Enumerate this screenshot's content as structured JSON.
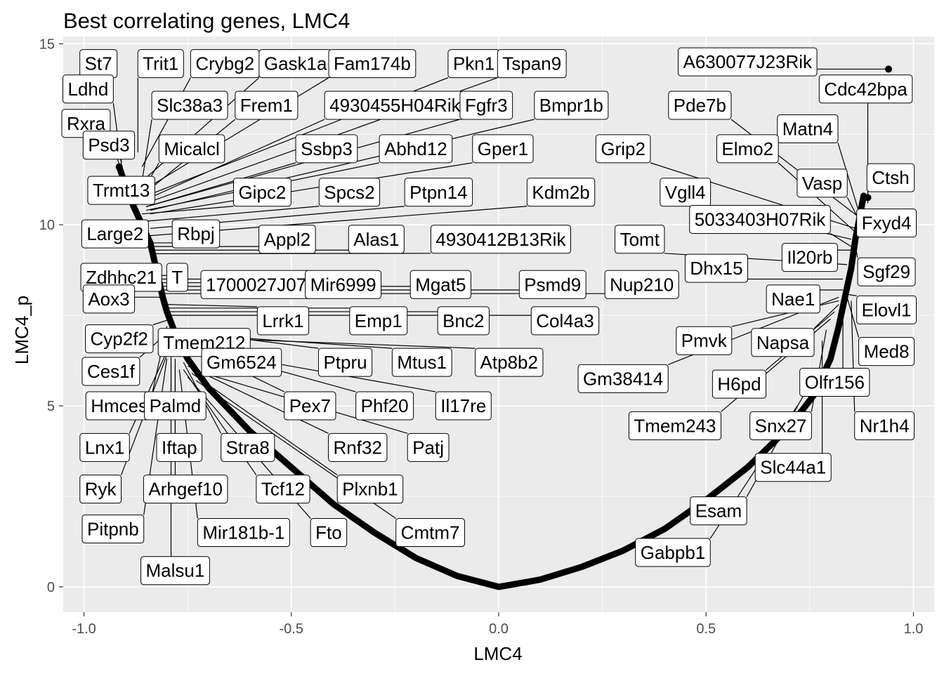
{
  "chart_data": {
    "type": "scatter",
    "title": "Best correlating genes, LMC4",
    "xlabel": "LMC4",
    "ylabel": "LMC4_p",
    "xlim": [
      -1.05,
      1.05
    ],
    "ylim": [
      -0.7,
      15.2
    ],
    "x_ticks": [
      -1.0,
      -0.5,
      0.0,
      0.5,
      1.0
    ],
    "x_tick_labels": [
      "-1.0",
      "-0.5",
      "0.0",
      "0.5",
      "1.0"
    ],
    "y_ticks": [
      0,
      5,
      10,
      15
    ],
    "y_tick_labels": [
      "0",
      "5",
      "10",
      "15"
    ],
    "grid": true,
    "background": "#ebebeb",
    "curve": {
      "description": "dense background points forming a U-shaped relationship",
      "points": [
        [
          -0.915,
          11.6
        ],
        [
          -0.9,
          11.1
        ],
        [
          -0.88,
          10.5
        ],
        [
          -0.86,
          10.0
        ],
        [
          -0.84,
          9.5
        ],
        [
          -0.83,
          9.0
        ],
        [
          -0.82,
          8.5
        ],
        [
          -0.81,
          8.0
        ],
        [
          -0.8,
          7.6
        ],
        [
          -0.78,
          7.0
        ],
        [
          -0.75,
          6.3
        ],
        [
          -0.7,
          5.5
        ],
        [
          -0.6,
          4.3
        ],
        [
          -0.5,
          3.3
        ],
        [
          -0.4,
          2.3
        ],
        [
          -0.3,
          1.5
        ],
        [
          -0.2,
          0.8
        ],
        [
          -0.1,
          0.3
        ],
        [
          0.0,
          0.0
        ],
        [
          0.1,
          0.2
        ],
        [
          0.2,
          0.55
        ],
        [
          0.3,
          1.0
        ],
        [
          0.4,
          1.6
        ],
        [
          0.5,
          2.4
        ],
        [
          0.6,
          3.3
        ],
        [
          0.7,
          4.4
        ],
        [
          0.76,
          5.3
        ],
        [
          0.8,
          6.3
        ],
        [
          0.82,
          7.2
        ],
        [
          0.835,
          8.0
        ],
        [
          0.85,
          8.8
        ],
        [
          0.86,
          9.6
        ],
        [
          0.87,
          10.2
        ],
        [
          0.88,
          10.8
        ]
      ]
    },
    "highlighted_points": [
      {
        "x": 0.94,
        "y": 14.3
      },
      {
        "x": 0.89,
        "y": 10.75
      },
      {
        "x": -0.915,
        "y": 11.6
      }
    ],
    "labels": [
      {
        "text": "St7",
        "x": -0.93,
        "y": 14.5,
        "lx": -0.965,
        "ly": 14.45
      },
      {
        "text": "Trit1",
        "x": -0.87,
        "y": 12.0,
        "lx": -0.815,
        "ly": 14.45
      },
      {
        "text": "Crybg2",
        "x": -0.86,
        "y": 11.6,
        "lx": -0.66,
        "ly": 14.45
      },
      {
        "text": "Gask1a",
        "x": -0.85,
        "y": 11.3,
        "lx": -0.49,
        "ly": 14.45
      },
      {
        "text": "Fam174b",
        "x": -0.85,
        "y": 11.0,
        "lx": -0.305,
        "ly": 14.45
      },
      {
        "text": "Pkn1",
        "x": -0.85,
        "y": 10.8,
        "lx": -0.06,
        "ly": 14.45
      },
      {
        "text": "Tspan9",
        "x": -0.85,
        "y": 10.6,
        "lx": 0.08,
        "ly": 14.45
      },
      {
        "text": "Ldhd",
        "x": -0.91,
        "y": 11.7,
        "lx": -0.99,
        "ly": 13.75
      },
      {
        "text": "Rxra",
        "x": -0.91,
        "y": 11.5,
        "lx": -0.995,
        "ly": 12.8
      },
      {
        "text": "Slc38a3",
        "x": -0.86,
        "y": 11.2,
        "lx": -0.745,
        "ly": 13.3
      },
      {
        "text": "Frem1",
        "x": -0.85,
        "y": 10.9,
        "lx": -0.56,
        "ly": 13.3
      },
      {
        "text": "4930455H04Rik",
        "x": -0.85,
        "y": 10.7,
        "lx": -0.25,
        "ly": 13.3
      },
      {
        "text": "Fgfr3",
        "x": -0.85,
        "y": 10.5,
        "lx": -0.03,
        "ly": 13.3
      },
      {
        "text": "Bmpr1b",
        "x": -0.84,
        "y": 10.4,
        "lx": 0.175,
        "ly": 13.3
      },
      {
        "text": "Psd3",
        "x": -0.91,
        "y": 11.6,
        "lx": -0.94,
        "ly": 12.2
      },
      {
        "text": "Micalcl",
        "x": -0.86,
        "y": 10.9,
        "lx": -0.74,
        "ly": 12.1
      },
      {
        "text": "Ssbp3",
        "x": -0.85,
        "y": 10.5,
        "lx": -0.415,
        "ly": 12.1
      },
      {
        "text": "Abhd12",
        "x": -0.85,
        "y": 10.4,
        "lx": -0.2,
        "ly": 12.1
      },
      {
        "text": "Gper1",
        "x": -0.84,
        "y": 10.3,
        "lx": 0.01,
        "ly": 12.1
      },
      {
        "text": "Trmt13",
        "x": -0.88,
        "y": 10.5,
        "lx": -0.91,
        "ly": 10.95
      },
      {
        "text": "Gipc2",
        "x": -0.86,
        "y": 10.3,
        "lx": -0.57,
        "ly": 10.9
      },
      {
        "text": "Spcs2",
        "x": -0.85,
        "y": 10.1,
        "lx": -0.36,
        "ly": 10.9
      },
      {
        "text": "Ptpn14",
        "x": -0.84,
        "y": 9.9,
        "lx": -0.145,
        "ly": 10.9
      },
      {
        "text": "Kdm2b",
        "x": -0.84,
        "y": 9.7,
        "lx": 0.15,
        "ly": 10.9
      },
      {
        "text": "Large2",
        "x": -0.85,
        "y": 9.6,
        "lx": -0.925,
        "ly": 9.75
      },
      {
        "text": "Rbpj",
        "x": -0.84,
        "y": 9.5,
        "lx": -0.73,
        "ly": 9.75
      },
      {
        "text": "Appl2",
        "x": -0.84,
        "y": 9.4,
        "lx": -0.51,
        "ly": 9.6
      },
      {
        "text": "Alas1",
        "x": -0.83,
        "y": 9.3,
        "lx": -0.295,
        "ly": 9.6
      },
      {
        "text": "4930412B13Rik",
        "x": -0.83,
        "y": 9.2,
        "lx": 0.005,
        "ly": 9.6
      },
      {
        "text": "Zdhhc21",
        "x": -0.83,
        "y": 8.7,
        "lx": -0.91,
        "ly": 8.55
      },
      {
        "text": "T",
        "x": -0.82,
        "y": 8.6,
        "lx": -0.775,
        "ly": 8.55
      },
      {
        "text": "1700027J07",
        "x": -0.82,
        "y": 8.5,
        "lx": -0.585,
        "ly": 8.35
      },
      {
        "text": "Mir6999",
        "x": -0.82,
        "y": 8.4,
        "lx": -0.375,
        "ly": 8.35
      },
      {
        "text": "Mgat5",
        "x": -0.82,
        "y": 8.3,
        "lx": -0.14,
        "ly": 8.35
      },
      {
        "text": "Psmd9",
        "x": -0.82,
        "y": 8.2,
        "lx": 0.13,
        "ly": 8.35
      },
      {
        "text": "Nup210",
        "x": -0.82,
        "y": 8.1,
        "lx": 0.345,
        "ly": 8.35
      },
      {
        "text": "Aox3",
        "x": -0.81,
        "y": 8.0,
        "lx": -0.94,
        "ly": 7.95
      },
      {
        "text": "Lrrk1",
        "x": -0.8,
        "y": 7.8,
        "lx": -0.52,
        "ly": 7.35
      },
      {
        "text": "Emp1",
        "x": -0.8,
        "y": 7.7,
        "lx": -0.29,
        "ly": 7.35
      },
      {
        "text": "Bnc2",
        "x": -0.8,
        "y": 7.6,
        "lx": -0.085,
        "ly": 7.35
      },
      {
        "text": "Col4a3",
        "x": -0.8,
        "y": 7.5,
        "lx": 0.16,
        "ly": 7.35
      },
      {
        "text": "Cyp2f2",
        "x": -0.79,
        "y": 7.4,
        "lx": -0.915,
        "ly": 6.85
      },
      {
        "text": "Tmem212",
        "x": -0.79,
        "y": 7.3,
        "lx": -0.71,
        "ly": 6.75
      },
      {
        "text": "Gm6524",
        "x": -0.79,
        "y": 7.2,
        "lx": -0.62,
        "ly": 6.2
      },
      {
        "text": "Ptpru",
        "x": -0.79,
        "y": 7.1,
        "lx": -0.37,
        "ly": 6.2
      },
      {
        "text": "Mtus1",
        "x": -0.78,
        "y": 7.0,
        "lx": -0.185,
        "ly": 6.2
      },
      {
        "text": "Atp8b2",
        "x": -0.78,
        "y": 6.9,
        "lx": 0.025,
        "ly": 6.2
      },
      {
        "text": "Ces1f",
        "x": -0.8,
        "y": 7.0,
        "lx": -0.935,
        "ly": 5.95
      },
      {
        "text": "Gm38414",
        "x": 0.82,
        "y": 8.0,
        "lx": 0.3,
        "ly": 5.75
      },
      {
        "text": "Hmces",
        "x": -0.8,
        "y": 7.2,
        "lx": -0.915,
        "ly": 5.0
      },
      {
        "text": "Palmd",
        "x": -0.79,
        "y": 7.0,
        "lx": -0.78,
        "ly": 5.0
      },
      {
        "text": "Pex7",
        "x": -0.77,
        "y": 6.8,
        "lx": -0.455,
        "ly": 5.0
      },
      {
        "text": "Phf20",
        "x": -0.76,
        "y": 6.7,
        "lx": -0.275,
        "ly": 5.0
      },
      {
        "text": "Il17re",
        "x": -0.75,
        "y": 6.6,
        "lx": -0.085,
        "ly": 5.0
      },
      {
        "text": "Lnx1",
        "x": -0.8,
        "y": 6.5,
        "lx": -0.95,
        "ly": 3.85
      },
      {
        "text": "Iftap",
        "x": -0.78,
        "y": 6.3,
        "lx": -0.77,
        "ly": 3.85
      },
      {
        "text": "Stra8",
        "x": -0.76,
        "y": 6.2,
        "lx": -0.605,
        "ly": 3.85
      },
      {
        "text": "Rnf32",
        "x": -0.75,
        "y": 6.1,
        "lx": -0.34,
        "ly": 3.85
      },
      {
        "text": "Patj",
        "x": -0.74,
        "y": 6.0,
        "lx": -0.17,
        "ly": 3.85
      },
      {
        "text": "Ryk",
        "x": -0.8,
        "y": 6.4,
        "lx": -0.96,
        "ly": 2.7
      },
      {
        "text": "Arhgef10",
        "x": -0.78,
        "y": 6.1,
        "lx": -0.755,
        "ly": 2.7
      },
      {
        "text": "Tcf12",
        "x": -0.76,
        "y": 6.0,
        "lx": -0.52,
        "ly": 2.7
      },
      {
        "text": "Plxnb1",
        "x": -0.74,
        "y": 5.9,
        "lx": -0.31,
        "ly": 2.7
      },
      {
        "text": "Pitpnb",
        "x": -0.8,
        "y": 6.3,
        "lx": -0.93,
        "ly": 1.6
      },
      {
        "text": "Mir181b-1",
        "x": -0.77,
        "y": 6.0,
        "lx": -0.615,
        "ly": 1.5
      },
      {
        "text": "Fto",
        "x": -0.75,
        "y": 5.8,
        "lx": -0.41,
        "ly": 1.5
      },
      {
        "text": "Cmtm7",
        "x": -0.73,
        "y": 5.7,
        "lx": -0.165,
        "ly": 1.5
      },
      {
        "text": "Malsu1",
        "x": -0.79,
        "y": 6.2,
        "lx": -0.78,
        "ly": 0.45
      },
      {
        "text": "A630077J23Rik",
        "x": 0.94,
        "y": 14.3,
        "lx": 0.6,
        "ly": 14.5
      },
      {
        "text": "Cdc42bpa",
        "x": 0.89,
        "y": 10.75,
        "lx": 0.885,
        "ly": 13.75
      },
      {
        "text": "Pde7b",
        "x": 0.87,
        "y": 10.2,
        "lx": 0.485,
        "ly": 13.3
      },
      {
        "text": "Matn4",
        "x": 0.87,
        "y": 10.3,
        "lx": 0.745,
        "ly": 12.65
      },
      {
        "text": "Grip2",
        "x": 0.86,
        "y": 9.9,
        "lx": 0.3,
        "ly": 12.1
      },
      {
        "text": "Elmo2",
        "x": 0.86,
        "y": 9.8,
        "lx": 0.6,
        "ly": 12.1
      },
      {
        "text": "Ctsh",
        "x": 0.89,
        "y": 10.6,
        "lx": 0.945,
        "ly": 11.3
      },
      {
        "text": "Vasp",
        "x": 0.87,
        "y": 10.1,
        "lx": 0.78,
        "ly": 11.15
      },
      {
        "text": "Vgll4",
        "x": 0.85,
        "y": 9.6,
        "lx": 0.45,
        "ly": 10.9
      },
      {
        "text": "5033403H07Rik",
        "x": 0.85,
        "y": 9.4,
        "lx": 0.63,
        "ly": 10.15
      },
      {
        "text": "Fxyd4",
        "x": 0.87,
        "y": 9.9,
        "lx": 0.935,
        "ly": 10.05
      },
      {
        "text": "Tomt",
        "x": 0.84,
        "y": 8.9,
        "lx": 0.34,
        "ly": 9.6
      },
      {
        "text": "Il20rb",
        "x": 0.85,
        "y": 9.3,
        "lx": 0.75,
        "ly": 9.1
      },
      {
        "text": "Sgf29",
        "x": 0.86,
        "y": 9.4,
        "lx": 0.935,
        "ly": 8.7
      },
      {
        "text": "Dhx15",
        "x": 0.83,
        "y": 8.5,
        "lx": 0.525,
        "ly": 8.8
      },
      {
        "text": "Nae1",
        "x": 0.83,
        "y": 8.2,
        "lx": 0.71,
        "ly": 7.95
      },
      {
        "text": "Elovl1",
        "x": 0.83,
        "y": 8.1,
        "lx": 0.935,
        "ly": 7.65
      },
      {
        "text": "Pmvk",
        "x": 0.82,
        "y": 7.9,
        "lx": 0.495,
        "ly": 6.8
      },
      {
        "text": "Napsa",
        "x": 0.82,
        "y": 7.8,
        "lx": 0.685,
        "ly": 6.75
      },
      {
        "text": "Med8",
        "x": 0.84,
        "y": 8.0,
        "lx": 0.935,
        "ly": 6.5
      },
      {
        "text": "H6pd",
        "x": 0.81,
        "y": 7.6,
        "lx": 0.58,
        "ly": 5.6
      },
      {
        "text": "Olfr156",
        "x": 0.83,
        "y": 7.7,
        "lx": 0.81,
        "ly": 5.65
      },
      {
        "text": "Nr1h4",
        "x": 0.85,
        "y": 7.9,
        "lx": 0.93,
        "ly": 4.45
      },
      {
        "text": "Tmem243",
        "x": 0.8,
        "y": 7.4,
        "lx": 0.425,
        "ly": 4.45
      },
      {
        "text": "Snx27",
        "x": 0.79,
        "y": 7.1,
        "lx": 0.68,
        "ly": 4.45
      },
      {
        "text": "Slc44a1",
        "x": 0.78,
        "y": 6.8,
        "lx": 0.71,
        "ly": 3.3
      },
      {
        "text": "Esam",
        "x": 0.76,
        "y": 5.8,
        "lx": 0.53,
        "ly": 2.1
      },
      {
        "text": "Gabpb1",
        "x": 0.72,
        "y": 5.0,
        "lx": 0.42,
        "ly": 0.95
      }
    ]
  }
}
